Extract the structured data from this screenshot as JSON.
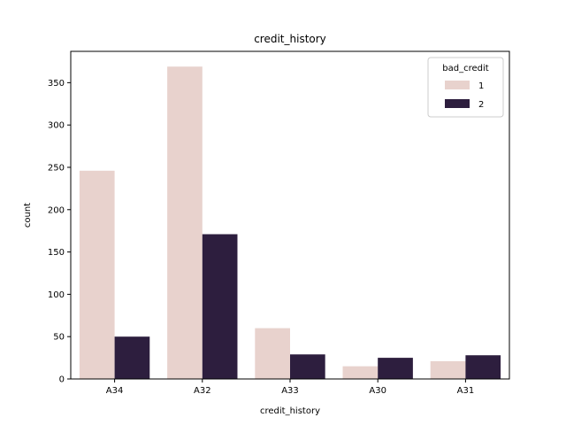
{
  "chart_data": {
    "type": "bar",
    "title": "credit_history",
    "xlabel": "credit_history",
    "ylabel": "count",
    "categories": [
      "A34",
      "A32",
      "A33",
      "A30",
      "A31"
    ],
    "series": [
      {
        "name": "1",
        "color": "#e8d2cd",
        "values": [
          246,
          369,
          60,
          15,
          21
        ]
      },
      {
        "name": "2",
        "color": "#2d1e3e",
        "values": [
          50,
          171,
          29,
          25,
          28
        ]
      }
    ],
    "ylim": [
      0,
      387
    ],
    "yticks": [
      0,
      50,
      100,
      150,
      200,
      250,
      300,
      350
    ],
    "grid": false,
    "legend": {
      "title": "bad_credit",
      "placement": "top-right"
    }
  }
}
